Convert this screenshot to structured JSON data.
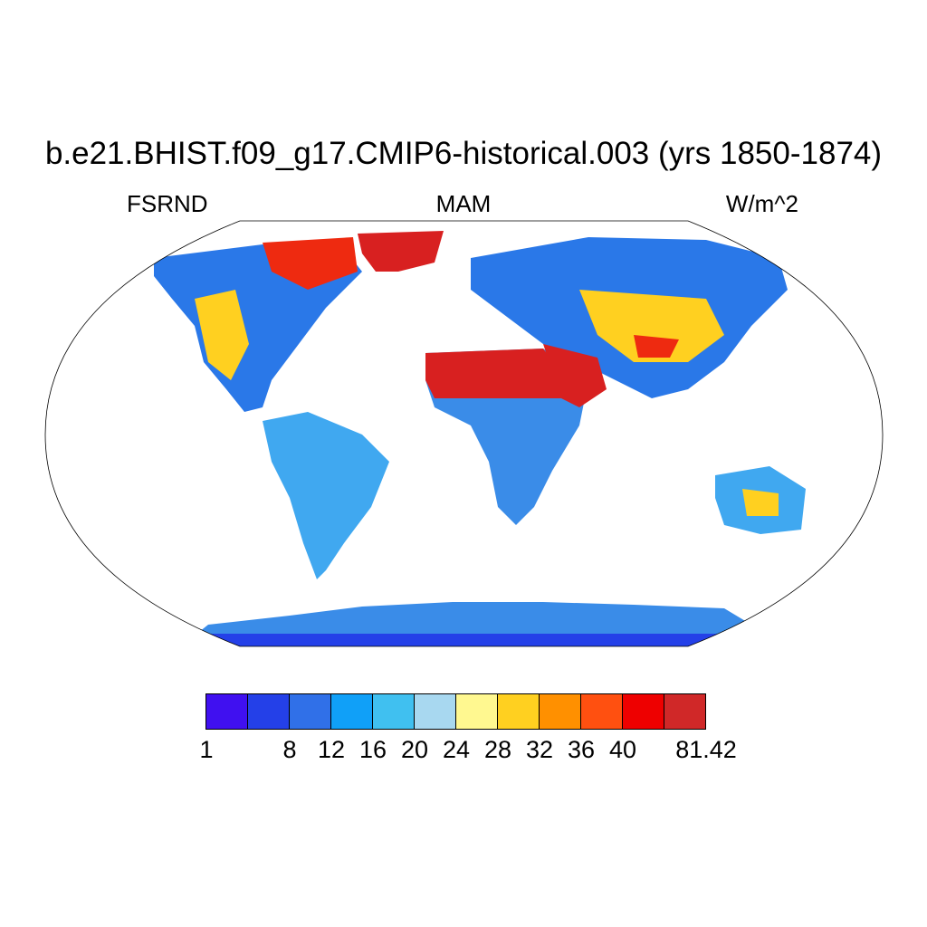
{
  "title": "b.e21.BHIST.f09_g17.CMIP6-historical.003 (yrs 1850-1874)",
  "left_label": "FSRND",
  "center_label": "MAM",
  "right_label": "W/m^2",
  "colorbar": {
    "colors": [
      "#4010f0",
      "#2440e8",
      "#3070e8",
      "#10a0f8",
      "#40c0f0",
      "#a8d8f0",
      "#fff890",
      "#ffd020",
      "#ff9000",
      "#ff5010",
      "#ee0000",
      "#d02828"
    ],
    "labels": [
      "1",
      "",
      "8",
      "12",
      "16",
      "20",
      "24",
      "28",
      "32",
      "36",
      "40",
      "",
      "81.42"
    ]
  }
}
